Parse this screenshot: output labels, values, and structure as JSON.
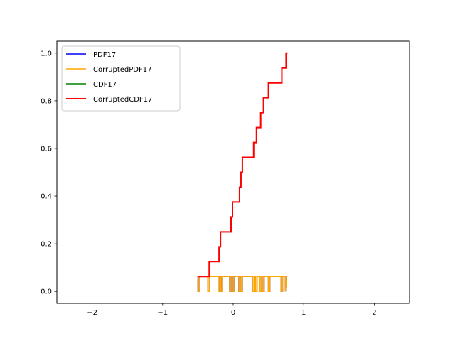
{
  "chart_data": {
    "type": "line",
    "title": "",
    "xlabel": "",
    "ylabel": "",
    "xlim": [
      -2.5,
      2.5
    ],
    "ylim": [
      -0.05,
      1.05
    ],
    "xticks": [
      -2,
      -1,
      0,
      1,
      2
    ],
    "xtick_labels": [
      "−2",
      "−1",
      "0",
      "1",
      "2"
    ],
    "yticks": [
      0.0,
      0.2,
      0.4,
      0.6,
      0.8,
      1.0
    ],
    "ytick_labels": [
      "0.0",
      "0.2",
      "0.4",
      "0.6",
      "0.8",
      "1.0"
    ],
    "grid": false,
    "legend_position": "upper-left",
    "series": [
      {
        "name": "PDF17",
        "color": "#0000ff",
        "width": 1.5,
        "x": [
          -0.5,
          -0.5,
          -0.48,
          -0.48,
          -0.36,
          -0.36,
          -0.34,
          -0.34,
          -0.2,
          -0.2,
          -0.18,
          -0.18,
          -0.17,
          -0.17,
          -0.15,
          -0.15,
          -0.05,
          -0.05,
          -0.03,
          -0.03,
          0.0,
          0.0,
          0.02,
          0.02,
          0.08,
          0.08,
          0.1,
          0.1,
          0.11,
          0.11,
          0.13,
          0.13,
          0.28,
          0.28,
          0.3,
          0.3,
          0.32,
          0.32,
          0.34,
          0.34,
          0.38,
          0.38,
          0.4,
          0.4,
          0.42,
          0.42,
          0.44,
          0.44,
          0.5,
          0.5,
          0.52,
          0.52,
          0.68,
          0.68,
          0.7,
          0.7,
          0.74,
          0.74,
          0.76
        ],
        "y": [
          0.0625,
          0.0,
          0.0,
          0.0625,
          0.0625,
          0.0,
          0.0,
          0.0625,
          0.0625,
          0.0,
          0.0,
          0.0625,
          0.0625,
          0.0,
          0.0,
          0.0625,
          0.0625,
          0.0,
          0.0,
          0.0625,
          0.0625,
          0.0,
          0.0,
          0.0625,
          0.0625,
          0.0,
          0.0,
          0.0625,
          0.0625,
          0.0,
          0.0,
          0.0625,
          0.0625,
          0.0,
          0.0,
          0.0625,
          0.0625,
          0.0,
          0.0,
          0.0625,
          0.0625,
          0.0,
          0.0,
          0.0625,
          0.0625,
          0.0,
          0.0,
          0.0625,
          0.0625,
          0.0,
          0.0,
          0.0625,
          0.0625,
          0.0,
          0.0,
          0.0625,
          0.0625,
          0.0,
          0.0625
        ]
      },
      {
        "name": "CorruptedPDF17",
        "color": "#ffa500",
        "width": 1.5,
        "x": [
          -0.5,
          -0.5,
          -0.48,
          -0.48,
          -0.36,
          -0.36,
          -0.34,
          -0.34,
          -0.2,
          -0.2,
          -0.18,
          -0.18,
          -0.17,
          -0.17,
          -0.15,
          -0.15,
          -0.05,
          -0.05,
          -0.03,
          -0.03,
          0.0,
          0.0,
          0.02,
          0.02,
          0.08,
          0.08,
          0.1,
          0.1,
          0.11,
          0.11,
          0.13,
          0.13,
          0.28,
          0.28,
          0.3,
          0.3,
          0.32,
          0.32,
          0.34,
          0.34,
          0.38,
          0.38,
          0.4,
          0.4,
          0.42,
          0.42,
          0.44,
          0.44,
          0.5,
          0.5,
          0.52,
          0.52,
          0.68,
          0.68,
          0.7,
          0.7,
          0.74,
          0.74,
          0.76
        ],
        "y": [
          0.0625,
          0.0,
          0.0,
          0.0625,
          0.0625,
          0.0,
          0.0,
          0.0625,
          0.0625,
          0.0,
          0.0,
          0.0625,
          0.0625,
          0.0,
          0.0,
          0.0625,
          0.0625,
          0.0,
          0.0,
          0.0625,
          0.0625,
          0.0,
          0.0,
          0.0625,
          0.0625,
          0.0,
          0.0,
          0.0625,
          0.0625,
          0.0,
          0.0,
          0.0625,
          0.0625,
          0.0,
          0.0,
          0.0625,
          0.0625,
          0.0,
          0.0,
          0.0625,
          0.0625,
          0.0,
          0.0,
          0.0625,
          0.0625,
          0.0,
          0.0,
          0.0625,
          0.0625,
          0.0,
          0.0,
          0.0625,
          0.0625,
          0.0,
          0.0,
          0.0625,
          0.0625,
          0.0,
          0.0625
        ]
      },
      {
        "name": "CDF17",
        "color": "#008000",
        "width": 1.5,
        "x": [
          -0.5,
          -0.34,
          -0.34,
          -0.2,
          -0.2,
          -0.18,
          -0.18,
          -0.15,
          -0.15,
          -0.03,
          -0.03,
          -0.01,
          -0.01,
          0.02,
          0.02,
          0.09,
          0.09,
          0.11,
          0.11,
          0.13,
          0.13,
          0.29,
          0.29,
          0.33,
          0.33,
          0.39,
          0.39,
          0.43,
          0.43,
          0.5,
          0.5,
          0.69,
          0.69,
          0.75,
          0.75,
          0.77
        ],
        "y": [
          0.0625,
          0.0625,
          0.125,
          0.125,
          0.1875,
          0.1875,
          0.25,
          0.25,
          0.25,
          0.25,
          0.3125,
          0.3125,
          0.375,
          0.375,
          0.375,
          0.375,
          0.4375,
          0.4375,
          0.5,
          0.5,
          0.5625,
          0.5625,
          0.625,
          0.625,
          0.6875,
          0.6875,
          0.75,
          0.75,
          0.8125,
          0.8125,
          0.875,
          0.875,
          0.9375,
          0.9375,
          1.0,
          1.0
        ]
      },
      {
        "name": "CorruptedCDF17",
        "color": "#ff0000",
        "width": 2,
        "x": [
          -0.5,
          -0.34,
          -0.34,
          -0.2,
          -0.2,
          -0.18,
          -0.18,
          -0.15,
          -0.15,
          -0.03,
          -0.03,
          -0.01,
          -0.01,
          0.02,
          0.02,
          0.09,
          0.09,
          0.11,
          0.11,
          0.13,
          0.13,
          0.29,
          0.29,
          0.33,
          0.33,
          0.39,
          0.39,
          0.43,
          0.43,
          0.5,
          0.5,
          0.69,
          0.69,
          0.75,
          0.75,
          0.77
        ],
        "y": [
          0.0625,
          0.0625,
          0.125,
          0.125,
          0.1875,
          0.1875,
          0.25,
          0.25,
          0.25,
          0.25,
          0.3125,
          0.3125,
          0.375,
          0.375,
          0.375,
          0.375,
          0.4375,
          0.4375,
          0.5,
          0.5,
          0.5625,
          0.5625,
          0.625,
          0.625,
          0.6875,
          0.6875,
          0.75,
          0.75,
          0.8125,
          0.8125,
          0.875,
          0.875,
          0.9375,
          0.9375,
          1.0,
          1.0
        ]
      }
    ]
  }
}
